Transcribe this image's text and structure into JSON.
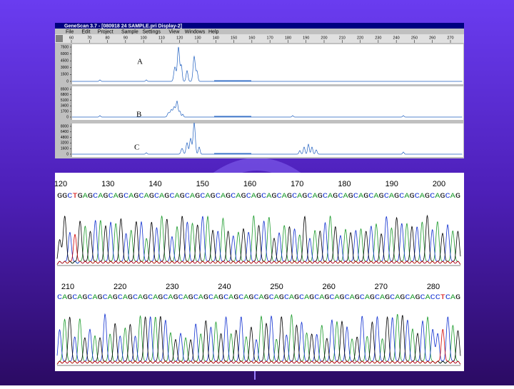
{
  "window": {
    "title": "GeneScan 3.7 - [080918 24 SAMPLE.pri Display-2]",
    "menu": [
      "File",
      "Edit",
      "Project",
      "Sample",
      "Settings",
      "View",
      "Windows",
      "Help"
    ],
    "ruler": [
      60,
      70,
      80,
      90,
      100,
      110,
      120,
      130,
      140,
      150,
      160,
      170,
      180,
      190,
      200,
      210,
      220,
      230,
      240,
      250,
      260,
      270
    ],
    "panels": [
      {
        "label": "A",
        "yticks": [
          7500,
          6000,
          4500,
          3000,
          1500,
          0
        ]
      },
      {
        "label": "B",
        "yticks": [
          8500,
          6800,
          5100,
          3400,
          1700,
          0
        ]
      },
      {
        "label": "C",
        "yticks": [
          8000,
          6400,
          4800,
          3200,
          1600,
          0
        ]
      }
    ]
  },
  "chromatogram": {
    "rows": [
      {
        "positions": [
          120,
          130,
          140,
          150,
          160,
          170,
          180,
          190,
          200
        ],
        "sequence": "GGCTGAGCAGCAGCAGCAGCAGCAGCAGCAGCAGCAGCAGCAGCAGCAGCAGCAGCAGCAGCAGCAGCAGCAGCAGCAG"
      },
      {
        "positions": [
          210,
          220,
          230,
          240,
          250,
          260,
          270,
          280
        ],
        "sequence": "CAGCAGCAGCAGCAGCAGCAGCAGCAGCAGCAGCAGCAGCAGCAGCAGCAGCAGCAGCAGCAGCAGCAGCAGCACCTCAG"
      }
    ]
  }
}
